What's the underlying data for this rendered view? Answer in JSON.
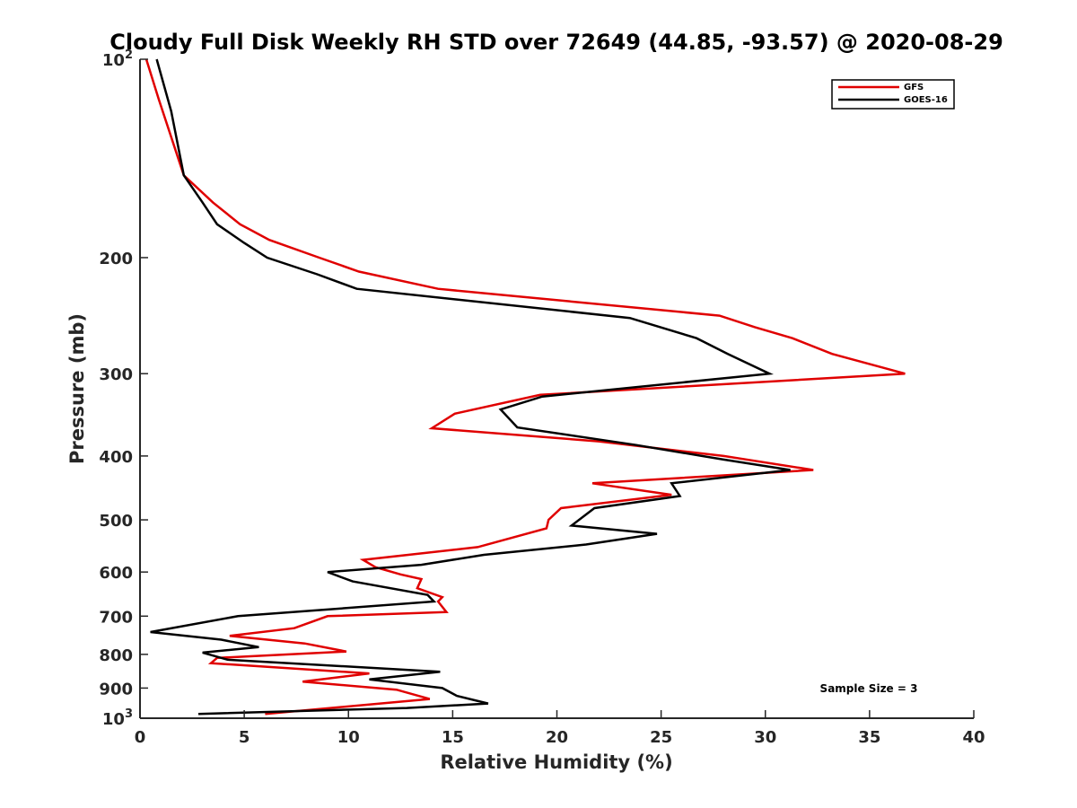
{
  "chart_data": {
    "type": "line",
    "title": "Cloudy Full Disk Weekly RH STD over 72649 (44.85, -93.57) @ 2020-08-29",
    "xlabel": "Relative Humidity (%)",
    "ylabel": "Pressure (mb)",
    "xlim": [
      0,
      40
    ],
    "ylim": [
      100,
      1000
    ],
    "yscale": "log",
    "y_reversed": true,
    "grid": false,
    "legend_position": "top-right",
    "x_ticks": [
      "0",
      "5",
      "10",
      "15",
      "20",
      "25",
      "30",
      "35",
      "40"
    ],
    "y_ticks": [
      {
        "value": 100,
        "base": "10",
        "exp": "2"
      },
      {
        "value": 200,
        "label": "200"
      },
      {
        "value": 300,
        "label": "300"
      },
      {
        "value": 400,
        "label": "400"
      },
      {
        "value": 500,
        "label": "500"
      },
      {
        "value": 600,
        "label": "600"
      },
      {
        "value": 700,
        "label": "700"
      },
      {
        "value": 800,
        "label": "800"
      },
      {
        "value": 900,
        "label": "900"
      },
      {
        "value": 1000,
        "base": "10",
        "exp": "3"
      }
    ],
    "annotation": "Sample Size = 3",
    "series": [
      {
        "name": "GFS",
        "color": "#e00000",
        "points": [
          [
            0.3,
            100
          ],
          [
            0.9,
            115
          ],
          [
            2.1,
            150
          ],
          [
            3.5,
            165
          ],
          [
            4.8,
            178
          ],
          [
            6.2,
            188
          ],
          [
            8.6,
            200
          ],
          [
            10.5,
            210
          ],
          [
            14.3,
            223
          ],
          [
            27.8,
            245
          ],
          [
            29.5,
            255
          ],
          [
            31.3,
            265
          ],
          [
            33.2,
            280
          ],
          [
            36.7,
            300
          ],
          [
            19.2,
            323
          ],
          [
            15.1,
            345
          ],
          [
            14.0,
            363
          ],
          [
            22.0,
            380
          ],
          [
            28.0,
            400
          ],
          [
            32.3,
            420
          ],
          [
            21.7,
            440
          ],
          [
            25.5,
            458
          ],
          [
            20.2,
            480
          ],
          [
            19.6,
            500
          ],
          [
            19.5,
            515
          ],
          [
            16.2,
            550
          ],
          [
            10.7,
            575
          ],
          [
            11.3,
            590
          ],
          [
            12.5,
            605
          ],
          [
            13.5,
            615
          ],
          [
            13.3,
            635
          ],
          [
            14.5,
            655
          ],
          [
            14.3,
            665
          ],
          [
            14.7,
            690
          ],
          [
            9.0,
            700
          ],
          [
            7.4,
            730
          ],
          [
            4.3,
            750
          ],
          [
            7.9,
            770
          ],
          [
            9.9,
            792
          ],
          [
            3.7,
            810
          ],
          [
            3.4,
            825
          ],
          [
            11.0,
            855
          ],
          [
            7.8,
            880
          ],
          [
            12.3,
            905
          ],
          [
            13.9,
            935
          ],
          [
            6.0,
            985
          ]
        ]
      },
      {
        "name": "GOES-16",
        "color": "#000000",
        "points": [
          [
            0.8,
            100
          ],
          [
            1.5,
            120
          ],
          [
            2.1,
            150
          ],
          [
            3.0,
            165
          ],
          [
            3.7,
            178
          ],
          [
            5.0,
            190
          ],
          [
            6.1,
            200
          ],
          [
            8.5,
            212
          ],
          [
            10.4,
            223
          ],
          [
            23.5,
            247
          ],
          [
            26.7,
            265
          ],
          [
            28.2,
            280
          ],
          [
            30.2,
            300
          ],
          [
            19.3,
            325
          ],
          [
            17.3,
            340
          ],
          [
            18.1,
            362
          ],
          [
            23.8,
            385
          ],
          [
            28.0,
            405
          ],
          [
            31.2,
            420
          ],
          [
            25.5,
            440
          ],
          [
            25.9,
            460
          ],
          [
            21.8,
            480
          ],
          [
            20.7,
            510
          ],
          [
            24.8,
            525
          ],
          [
            21.4,
            545
          ],
          [
            16.5,
            565
          ],
          [
            13.5,
            585
          ],
          [
            9.0,
            600
          ],
          [
            10.2,
            620
          ],
          [
            13.8,
            650
          ],
          [
            14.1,
            665
          ],
          [
            4.7,
            700
          ],
          [
            0.5,
            740
          ],
          [
            3.9,
            760
          ],
          [
            5.7,
            780
          ],
          [
            3.0,
            795
          ],
          [
            4.2,
            815
          ],
          [
            14.4,
            850
          ],
          [
            11.0,
            873
          ],
          [
            14.5,
            900
          ],
          [
            15.2,
            925
          ],
          [
            16.7,
            950
          ],
          [
            12.8,
            965
          ],
          [
            2.8,
            985
          ]
        ]
      }
    ]
  }
}
